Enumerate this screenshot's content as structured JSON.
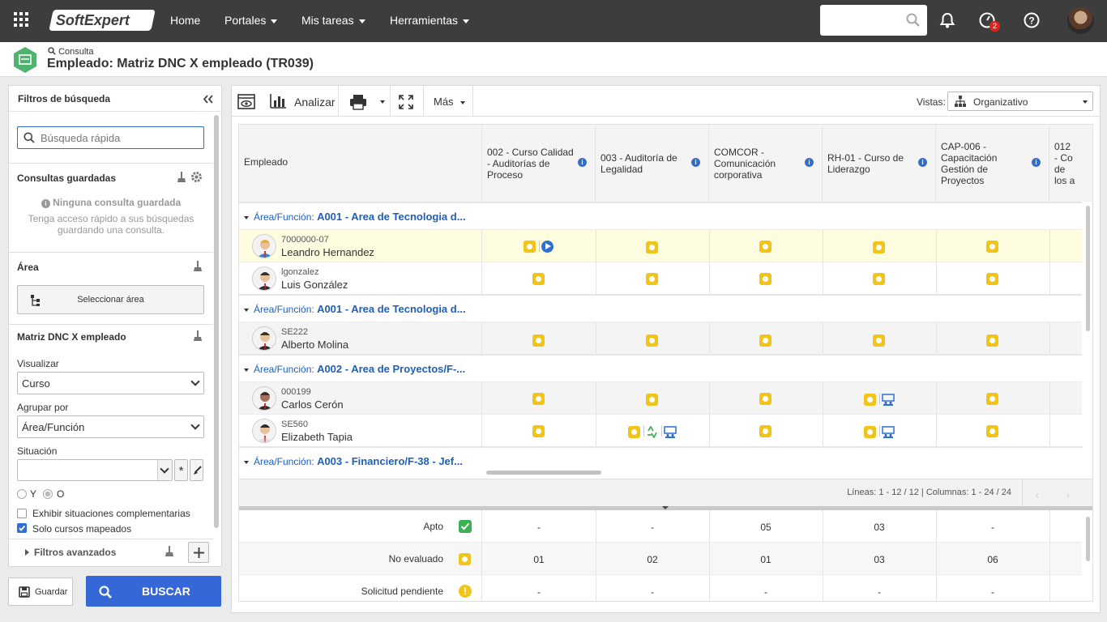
{
  "topbar": {
    "logo_text": "SoftExpert",
    "nav": [
      {
        "label": "Home",
        "has_caret": false
      },
      {
        "label": "Portales",
        "has_caret": true
      },
      {
        "label": "Mis tareas",
        "has_caret": true
      },
      {
        "label": "Herramientas",
        "has_caret": true
      }
    ],
    "notification_count": "2"
  },
  "titlebar": {
    "breadcrumb": "Consulta",
    "title": "Empleado: Matriz DNC X empleado (TR039)"
  },
  "filters": {
    "header": "Filtros de búsqueda",
    "quick_search_placeholder": "Búsqueda rápida",
    "saved_queries_title": "Consultas guardadas",
    "no_saved": "Ninguna consulta guardada",
    "no_saved_hint": "Tenga acceso rápido a sus búsquedas guardando una consulta.",
    "area_title": "Área",
    "select_area_label": "Seleccionar área",
    "matrix_title": "Matriz DNC X empleado",
    "visualizar_label": "Visualizar",
    "visualizar_value": "Curso",
    "agrupar_label": "Agrupar por",
    "agrupar_value": "Área/Función",
    "situacion_label": "Situación",
    "radio_y": "Y",
    "radio_o": "O",
    "check_complementarias": "Exhibir situaciones complementarias",
    "check_mapeados": "Solo cursos mapeados",
    "advanced": "Filtros avanzados",
    "save_button": "Guardar",
    "search_button": "BUSCAR"
  },
  "toolbar": {
    "analyze": "Analizar",
    "more": "Más",
    "views_label": "Vistas:",
    "views_value": "Organizativo"
  },
  "grid": {
    "employee_header": "Empleado",
    "columns": [
      "002 - Curso Calidad - Auditorías de Proceso",
      "003 - Auditoría de Legalidad",
      "COMCOR - Comunicación corporativa",
      "RH-01 - Curso de Liderazgo",
      "CAP-006 - Capacitación Gestión de Proyectos",
      "012 - Co de los a"
    ],
    "group_prefix": "Área/Función:",
    "groups": [
      {
        "name": "A001 - Area de Tecnologia d...",
        "rows": [
          {
            "code": "7000000-07",
            "name": "Leandro Hernandez",
            "highlight": true
          },
          {
            "code": "lgonzalez",
            "name": "Luis González",
            "highlight": false
          }
        ]
      },
      {
        "name": "A001 - Area de Tecnologia d...",
        "rows": [
          {
            "code": "SE222",
            "name": "Alberto Molina",
            "highlight": false
          }
        ]
      },
      {
        "name": "A002 - Area de Proyectos/F-...",
        "rows": [
          {
            "code": "000199",
            "name": "Carlos Cerón",
            "highlight": false
          },
          {
            "code": "SE560",
            "name": "Elizabeth Tapia",
            "highlight": false
          }
        ]
      },
      {
        "name": "A003 - Financiero/F-38 - Jef...",
        "rows": []
      }
    ],
    "pagination": "Líneas: 1 - 12 / 12 | Columnas: 1 - 24 / 24"
  },
  "summary": [
    {
      "label": "Apto",
      "icon": "check-icon",
      "values": [
        "-",
        "-",
        "05",
        "03",
        "-"
      ]
    },
    {
      "label": "No evaluado",
      "icon": "status-yellow-icon",
      "values": [
        "01",
        "02",
        "01",
        "03",
        "06"
      ]
    },
    {
      "label": "Solicitud pendiente",
      "icon": "alert-icon",
      "values": [
        "-",
        "-",
        "-",
        "-",
        "-"
      ]
    }
  ],
  "colors": {
    "topbar": "#3d3d3d",
    "accent_blue": "#3567d6",
    "group_blue": "#1f5fb5",
    "status_yellow": "#f0c419",
    "highlight_row": "#fffde0"
  }
}
